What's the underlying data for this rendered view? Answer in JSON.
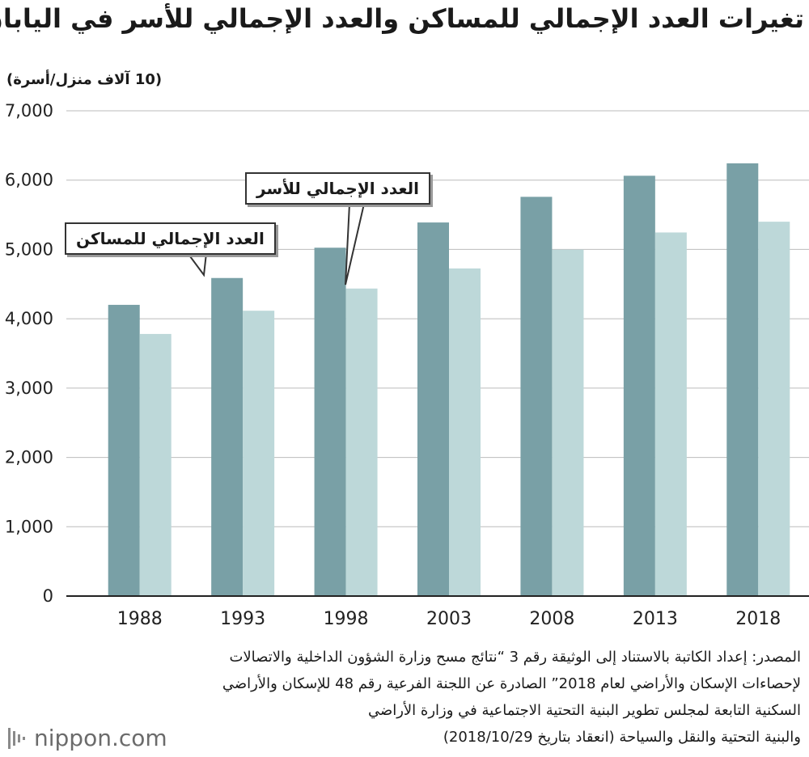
{
  "title": "تغيرات العدد الإجمالي للمساكن والعدد الإجمالي للأسر في اليابان",
  "unit_label": "(10 آلاف منزل/أسرة)",
  "callouts": {
    "dwellings": "العدد الإجمالي للمساكن",
    "households": "العدد الإجمالي للأسر"
  },
  "source_lines": [
    "المصدر: إعداد الكاتبة بالاستناد إلى الوثيقة رقم 3 “نتائج مسح وزارة الشؤون الداخلية والاتصالات",
    "لإحصاءات الإسكان والأراضي لعام 2018” الصادرة عن اللجنة الفرعية رقم 48 للإسكان والأراضي",
    "السكنية التابعة لمجلس تطوير البنية التحتية الاجتماعية في وزارة الأراضي",
    "والبنية التحتية والنقل والسياحة (انعقاد بتاريخ 2018/10/29)"
  ],
  "logo": {
    "text": "nippon.com"
  },
  "colors": {
    "dwellings": "#79a0a6",
    "households": "#bdd8d9",
    "grid": "#bbbbbb",
    "axis": "#222222"
  },
  "chart_data": {
    "type": "bar",
    "title": "تغيرات العدد الإجمالي للمساكن والعدد الإجمالي للأسر في اليابان",
    "ylabel": "(10 آلاف منزل/أسرة)",
    "categories": [
      "1988",
      "1993",
      "1998",
      "2003",
      "2008",
      "2013",
      "2018"
    ],
    "series": [
      {
        "name": "العدد الإجمالي للمساكن",
        "values": [
          4201,
          4588,
          5025,
          5389,
          5759,
          6063,
          6242
        ]
      },
      {
        "name": "العدد الإجمالي للأسر",
        "values": [
          3781,
          4116,
          4436,
          4726,
          4997,
          5245,
          5400
        ]
      }
    ],
    "ylim": [
      0,
      7000
    ],
    "yticks": [
      0,
      1000,
      2000,
      3000,
      4000,
      5000,
      6000,
      7000
    ],
    "ytick_labels": [
      "0",
      "1,000",
      "2,000",
      "3,000",
      "4,000",
      "5,000",
      "6,000",
      "7,000"
    ],
    "grid": true
  }
}
